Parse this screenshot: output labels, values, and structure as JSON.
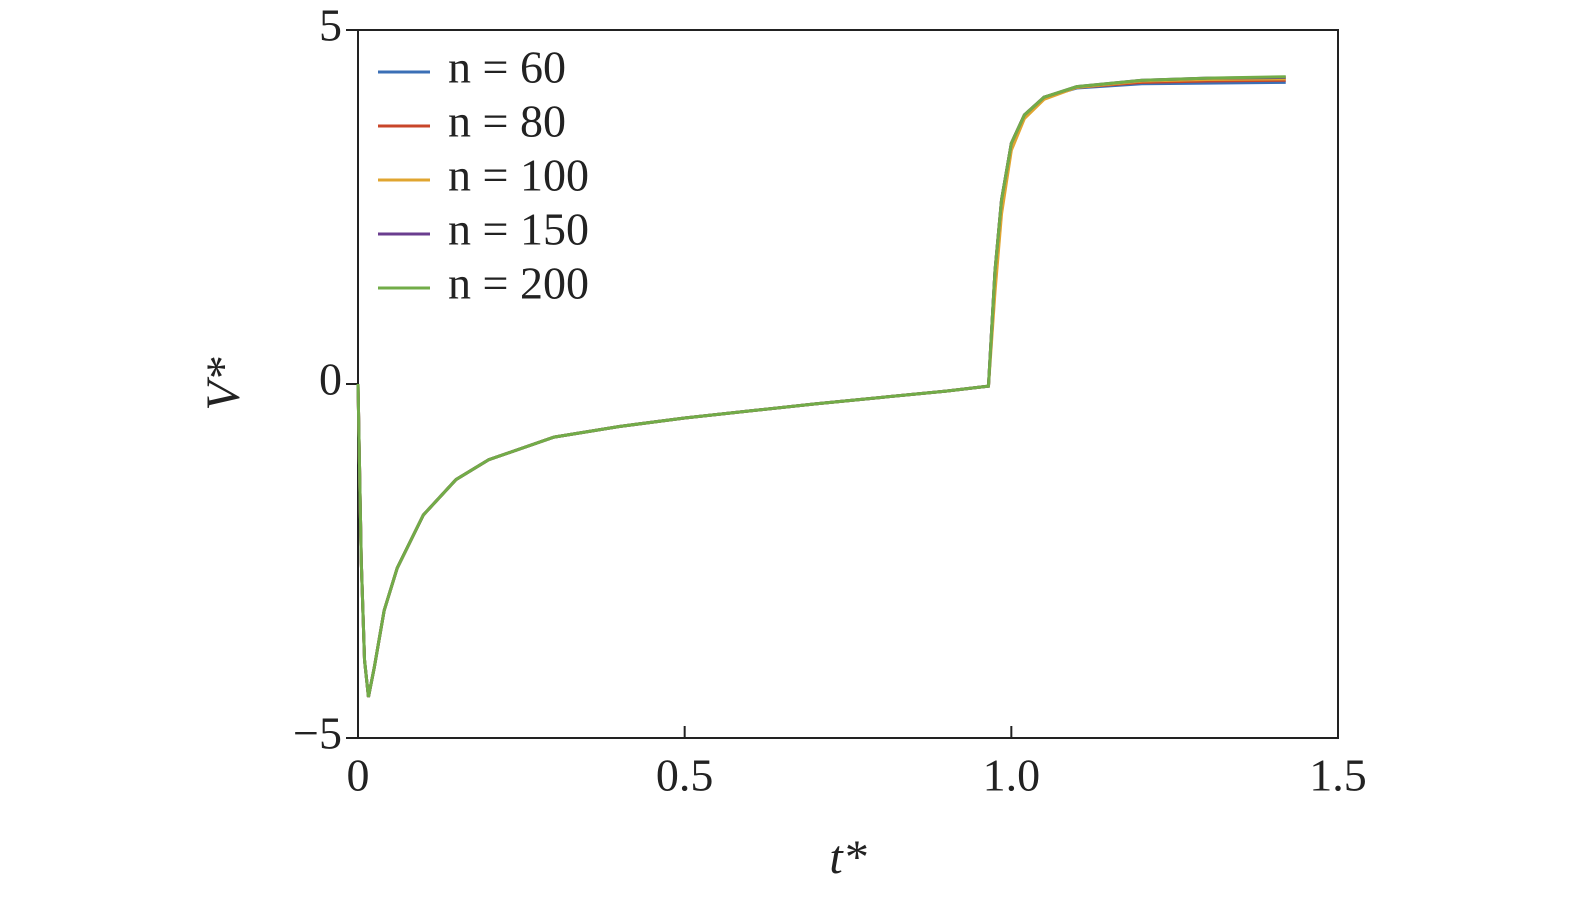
{
  "chart_data": {
    "type": "line",
    "x_label": "t*",
    "y_label": "V*",
    "x": [
      0,
      0.005,
      0.01,
      0.016,
      0.025,
      0.04,
      0.06,
      0.1,
      0.15,
      0.2,
      0.3,
      0.4,
      0.5,
      0.6,
      0.7,
      0.8,
      0.9,
      0.965,
      0.975,
      0.985,
      1.0,
      1.02,
      1.05,
      1.1,
      1.2,
      1.3,
      1.42
    ],
    "series": [
      {
        "name": "n = 60",
        "color": "#3b6fb6",
        "values": [
          0,
          -2.5,
          -3.9,
          -4.42,
          -4.0,
          -3.2,
          -2.6,
          -1.85,
          -1.35,
          -1.07,
          -0.75,
          -0.6,
          -0.48,
          -0.38,
          -0.28,
          -0.19,
          -0.1,
          -0.03,
          1.6,
          2.6,
          3.4,
          3.8,
          4.05,
          4.18,
          4.24,
          4.25,
          4.26
        ]
      },
      {
        "name": "n = 80",
        "color": "#c8462a",
        "values": [
          0,
          -2.5,
          -3.9,
          -4.42,
          -4.0,
          -3.2,
          -2.6,
          -1.85,
          -1.35,
          -1.07,
          -0.75,
          -0.6,
          -0.48,
          -0.38,
          -0.28,
          -0.19,
          -0.1,
          -0.03,
          1.6,
          2.6,
          3.4,
          3.8,
          4.05,
          4.19,
          4.26,
          4.28,
          4.29
        ]
      },
      {
        "name": "n = 100",
        "color": "#e0a530",
        "values": [
          0,
          -2.5,
          -3.9,
          -4.42,
          -4.0,
          -3.2,
          -2.6,
          -1.85,
          -1.35,
          -1.07,
          -0.75,
          -0.6,
          -0.48,
          -0.38,
          -0.28,
          -0.19,
          -0.1,
          -0.03,
          1.3,
          2.4,
          3.3,
          3.75,
          4.02,
          4.19,
          4.28,
          4.3,
          4.31
        ]
      },
      {
        "name": "n = 150",
        "color": "#6a3d8f",
        "values": [
          0,
          -2.5,
          -3.9,
          -4.42,
          -4.0,
          -3.2,
          -2.6,
          -1.85,
          -1.35,
          -1.07,
          -0.75,
          -0.6,
          -0.48,
          -0.38,
          -0.28,
          -0.19,
          -0.1,
          -0.03,
          1.6,
          2.6,
          3.4,
          3.8,
          4.05,
          4.2,
          4.29,
          4.32,
          4.33
        ]
      },
      {
        "name": "n = 200",
        "color": "#72ac48",
        "values": [
          0,
          -2.5,
          -3.9,
          -4.42,
          -4.0,
          -3.2,
          -2.6,
          -1.85,
          -1.35,
          -1.07,
          -0.75,
          -0.6,
          -0.48,
          -0.38,
          -0.28,
          -0.19,
          -0.1,
          -0.03,
          1.6,
          2.6,
          3.4,
          3.8,
          4.05,
          4.2,
          4.29,
          4.32,
          4.34
        ]
      }
    ],
    "xlim": [
      0,
      1.5
    ],
    "xticks": [
      0,
      0.5,
      {
        "value": 1,
        "label": "1.0"
      },
      1.5
    ],
    "ylim": [
      -5,
      5
    ],
    "yticks": [
      {
        "value": -5,
        "label": "−5"
      },
      0,
      5
    ],
    "legend": "upper left",
    "grid": false
  }
}
